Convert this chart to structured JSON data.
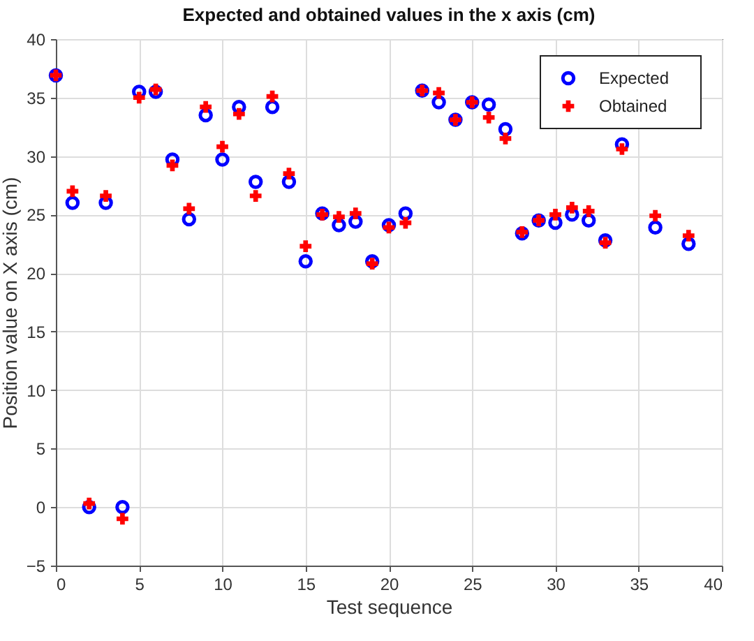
{
  "chart_data": {
    "type": "scatter",
    "title": "Expected and obtained values in the x axis (cm)",
    "xlabel": "Test sequence",
    "ylabel": "Position value on X axis (cm)",
    "x": [
      0,
      1,
      2,
      3,
      4,
      5,
      6,
      7,
      8,
      9,
      10,
      11,
      12,
      13,
      14,
      15,
      16,
      17,
      18,
      19,
      20,
      21,
      22,
      23,
      24,
      25,
      26,
      27,
      28,
      29,
      30,
      31,
      32,
      33,
      34,
      36,
      38
    ],
    "series": [
      {
        "name": "Expected",
        "color": "#0000ff",
        "marker": "circle",
        "values": [
          36.9,
          26,
          0,
          26,
          0,
          35.5,
          35.5,
          29.7,
          24.6,
          33.5,
          29.7,
          34.2,
          27.8,
          34.2,
          27.8,
          21,
          25.1,
          24.1,
          24.4,
          21,
          24.1,
          25.1,
          35.6,
          34.6,
          33.1,
          34.6,
          34.4,
          32.3,
          23.4,
          24.5,
          24.3,
          25,
          24.5,
          22.8,
          31,
          23.9,
          22.5
        ]
      },
      {
        "name": "Obtained",
        "color": "#ff0000",
        "marker": "cross",
        "values": [
          36.9,
          27,
          0.3,
          26.6,
          -1,
          35,
          35.7,
          29.2,
          25.5,
          34.2,
          30.8,
          33.6,
          26.6,
          35.1,
          28.5,
          22.3,
          25,
          24.8,
          25.1,
          20.8,
          23.9,
          24.3,
          35.6,
          35.4,
          33.1,
          34.6,
          33.3,
          31.5,
          23.5,
          24.5,
          25,
          25.6,
          25.3,
          22.6,
          30.6,
          24.9,
          23.2
        ]
      }
    ],
    "xlim": [
      0,
      40
    ],
    "xticks": [
      0,
      5,
      10,
      15,
      20,
      25,
      30,
      35,
      40
    ],
    "ylim": [
      -5,
      40
    ],
    "yticks": [
      -5,
      0,
      5,
      10,
      15,
      20,
      25,
      30,
      35,
      40
    ],
    "grid": true,
    "legend": "top right"
  }
}
